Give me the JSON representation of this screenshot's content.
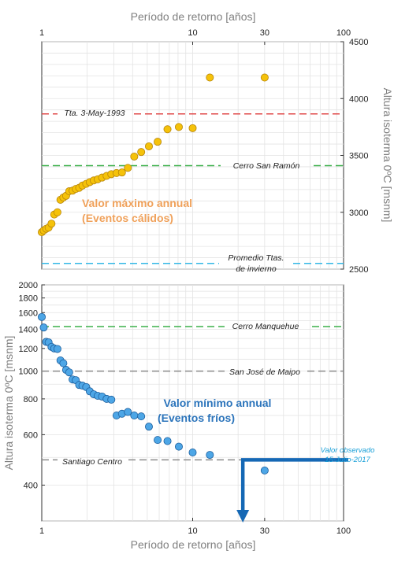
{
  "colors": {
    "warm_points": "#f5c20a",
    "warm_points_edge": "#b8860b",
    "cold_points": "#4da6e6",
    "cold_points_edge": "#1d5f9e",
    "warm_label": "#f0a15a",
    "cold_label": "#2b74bb",
    "red_ref": "#e04848",
    "green_ref": "#3bb04a",
    "cyan_ref": "#33b7e6",
    "gray_ref": "#8a8a8a",
    "arrow": "#1568b5",
    "observed_text": "#1aa0d8",
    "grid": "#e3e3e3",
    "axis_title": "#7f7f7f"
  },
  "chart_data": [
    {
      "type": "scatter",
      "xlabel": "Período de retorno [años]",
      "ylabel": "Altura isoterma 0ºC [msnm]",
      "xscale": "log",
      "yscale": "linear",
      "xlim": [
        1,
        100
      ],
      "ylim": [
        2500,
        4500
      ],
      "x_ticks": [
        1,
        10,
        30,
        100
      ],
      "y_ticks": [
        2500,
        3000,
        3500,
        4000,
        4500
      ],
      "grid": true,
      "series": [
        {
          "name": "Valor máximo annual (Eventos cálidos)",
          "x": [
            1.0,
            1.03,
            1.07,
            1.11,
            1.16,
            1.21,
            1.27,
            1.33,
            1.39,
            1.45,
            1.52,
            1.6,
            1.68,
            1.77,
            1.86,
            1.97,
            2.08,
            2.21,
            2.35,
            2.51,
            2.69,
            2.89,
            3.13,
            3.4,
            3.72,
            4.1,
            4.56,
            5.13,
            5.86,
            6.81,
            8.1,
            10.0,
            13.0,
            30.0
          ],
          "y": [
            2825,
            2840,
            2855,
            2865,
            2900,
            2980,
            3000,
            3110,
            3130,
            3145,
            3185,
            3190,
            3205,
            3215,
            3235,
            3250,
            3265,
            3280,
            3290,
            3305,
            3320,
            3335,
            3345,
            3350,
            3390,
            3490,
            3530,
            3580,
            3620,
            3730,
            3750,
            3740,
            4185,
            4185
          ]
        }
      ],
      "reference_lines": [
        {
          "label": "Tta. 3-May-1993",
          "y": 3865
        },
        {
          "label": "Cerro San Ramón",
          "y": 3410
        },
        {
          "label_line1": "Promedio Ttas.",
          "label_line2": "de invierno",
          "y": 2550
        }
      ],
      "annotation_line1": "Valor máximo annual",
      "annotation_line2": "(Eventos cálidos)"
    },
    {
      "type": "scatter",
      "xlabel": "Período de retorno [años]",
      "ylabel": "Altura isoterma 0ºC [msnm]",
      "xscale": "log",
      "yscale": "log",
      "xlim": [
        1,
        100
      ],
      "ylim": [
        300,
        2000
      ],
      "x_ticks": [
        1,
        10,
        30,
        100
      ],
      "y_ticks": [
        400,
        600,
        800,
        1000,
        1200,
        1400,
        1600,
        1800,
        2000
      ],
      "grid": true,
      "series": [
        {
          "name": "Valor mínimo annual (Eventos fríos)",
          "x": [
            1.0,
            1.03,
            1.07,
            1.11,
            1.16,
            1.21,
            1.27,
            1.33,
            1.39,
            1.45,
            1.52,
            1.6,
            1.68,
            1.77,
            1.86,
            1.97,
            2.08,
            2.21,
            2.35,
            2.51,
            2.69,
            2.89,
            3.13,
            3.4,
            3.72,
            4.1,
            4.56,
            5.13,
            5.86,
            6.81,
            8.1,
            10.0,
            13.0,
            30.0
          ],
          "y": [
            1545,
            1420,
            1265,
            1260,
            1215,
            1200,
            1195,
            1090,
            1065,
            1010,
            990,
            935,
            930,
            895,
            890,
            880,
            850,
            830,
            820,
            815,
            800,
            795,
            700,
            710,
            720,
            700,
            695,
            640,
            575,
            570,
            545,
            520,
            510,
            450
          ]
        }
      ],
      "reference_lines": [
        {
          "label": "Cerro Manquehue",
          "y": 1430
        },
        {
          "label": "San José de Maipo",
          "y": 1000
        },
        {
          "label": "Santiago Centro",
          "y": 490
        }
      ],
      "annotation_line1": "Valor mínimo annual",
      "annotation_line2": "(Eventos fríos)",
      "observed": {
        "label_line1": "Valor observado",
        "label_line2": "15-Julio-2017",
        "y": 490
      }
    }
  ]
}
